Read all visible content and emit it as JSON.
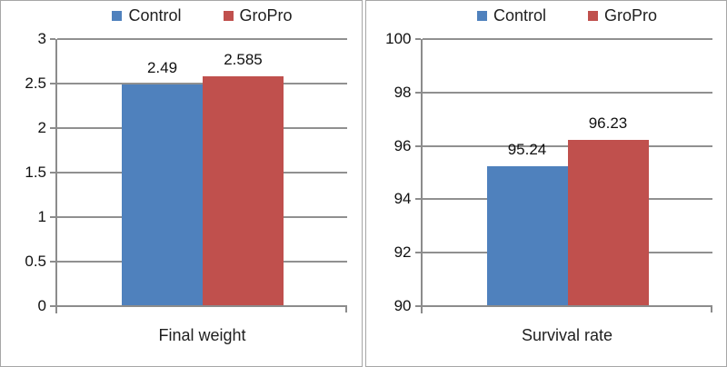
{
  "figure": {
    "background": "#ffffff",
    "panel_border_color": "#a6a6a6"
  },
  "colors": {
    "control": "#4f81bd",
    "gropro": "#c0504d",
    "axis": "#8c8c8c",
    "gridline": "#909090",
    "text": "#1a1a1a"
  },
  "legend": {
    "entries": [
      {
        "label": "Control",
        "color_key": "control"
      },
      {
        "label": "GroPro",
        "color_key": "gropro"
      }
    ]
  },
  "chart_data": [
    {
      "type": "bar",
      "title": "",
      "categories": [
        "Final weight"
      ],
      "xlabel": "Final weight",
      "ylabel": "",
      "series": [
        {
          "name": "Control",
          "values": [
            2.49
          ],
          "value_labels": [
            "2.49"
          ],
          "color_key": "control"
        },
        {
          "name": "GroPro",
          "values": [
            2.585
          ],
          "value_labels": [
            "2.585"
          ],
          "color_key": "gropro"
        }
      ],
      "ylim": [
        0,
        3
      ],
      "yticks": [
        0,
        0.5,
        1,
        1.5,
        2,
        2.5,
        3
      ],
      "ytick_labels": [
        "0",
        "0.5",
        "1",
        "1.5",
        "2",
        "2.5",
        "3"
      ],
      "grid": true,
      "legend_position": "top"
    },
    {
      "type": "bar",
      "title": "",
      "categories": [
        "Survival rate"
      ],
      "xlabel": "Survival rate",
      "ylabel": "",
      "series": [
        {
          "name": "Control",
          "values": [
            95.24
          ],
          "value_labels": [
            "95.24"
          ],
          "color_key": "control"
        },
        {
          "name": "GroPro",
          "values": [
            96.23
          ],
          "value_labels": [
            "96.23"
          ],
          "color_key": "gropro"
        }
      ],
      "ylim": [
        90,
        100
      ],
      "yticks": [
        90,
        92,
        94,
        96,
        98,
        100
      ],
      "ytick_labels": [
        "90",
        "92",
        "94",
        "96",
        "98",
        "100"
      ],
      "grid": true,
      "legend_position": "top"
    }
  ]
}
